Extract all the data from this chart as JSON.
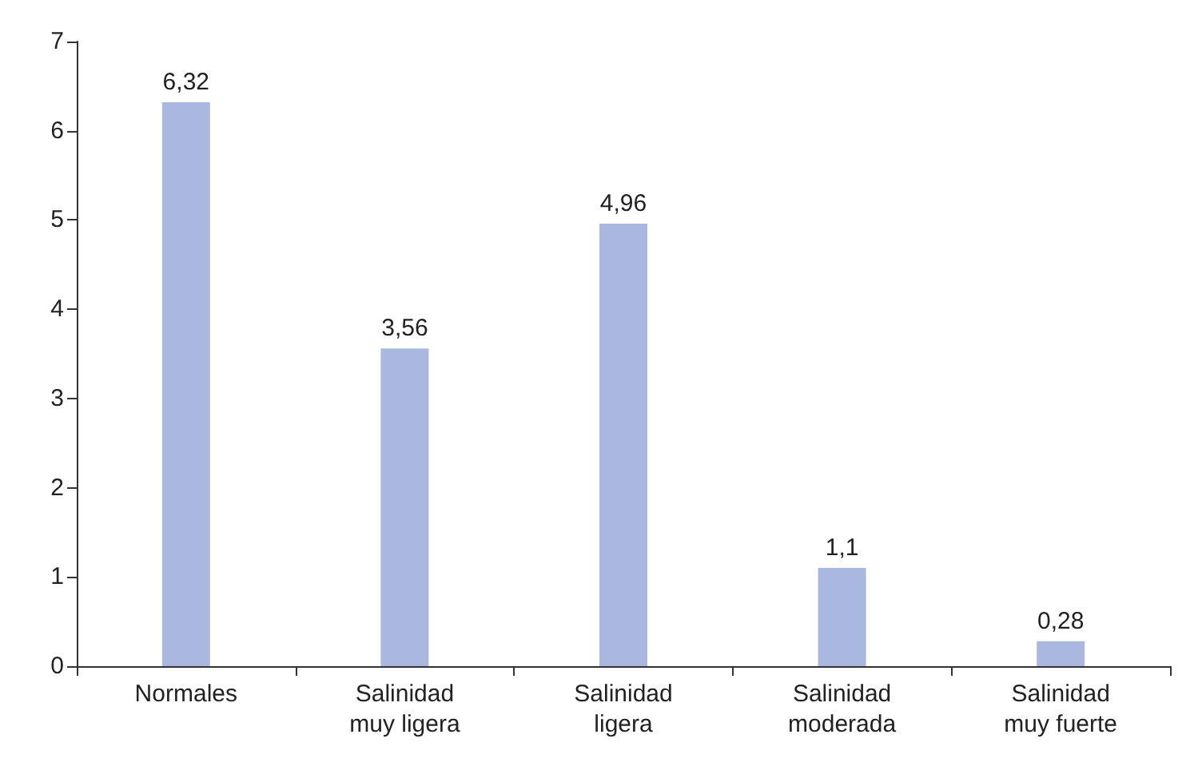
{
  "chart_data": {
    "type": "bar",
    "categories": [
      "Normales",
      "Salinidad\nmuy ligera",
      "Salinidad\nligera",
      "Salinidad\nmoderada",
      "Salinidad\nmuy fuerte"
    ],
    "values": [
      6.32,
      3.56,
      4.96,
      1.1,
      0.28
    ],
    "value_labels": [
      "6,32",
      "3,56",
      "4,96",
      "1,1",
      "0,28"
    ],
    "color": "#aab8e0",
    "ylim": [
      0,
      7
    ],
    "yticks": [
      0,
      1,
      2,
      3,
      4,
      5,
      6,
      7
    ]
  }
}
